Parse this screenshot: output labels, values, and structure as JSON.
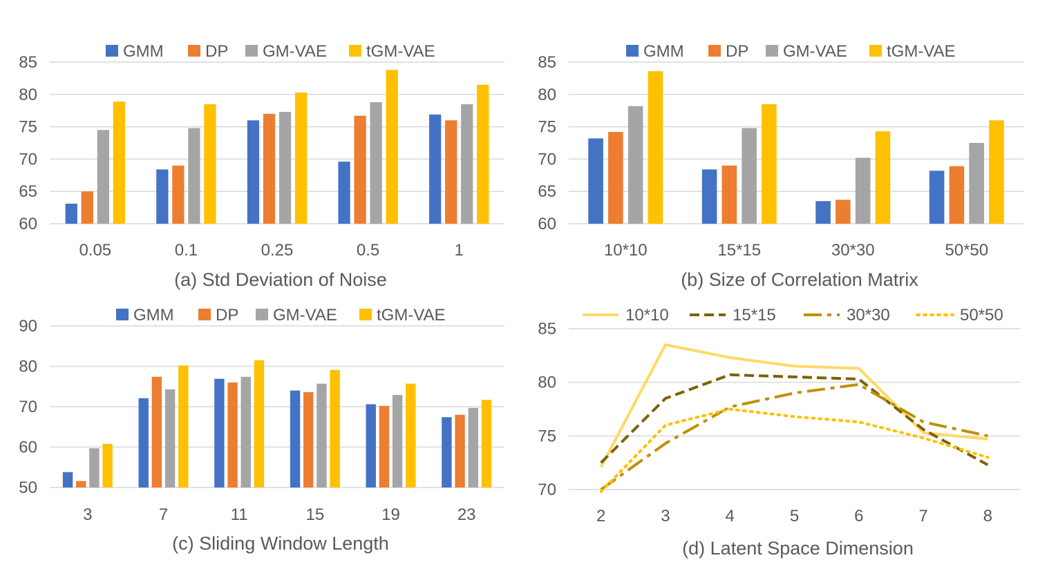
{
  "colors": {
    "GMM": "#4472c4",
    "DP": "#ed7d31",
    "GM-VAE": "#a5a5a5",
    "tGM-VAE": "#ffc000",
    "line_10x10": "#ffd966",
    "line_15x15": "#7f6000",
    "line_30x30": "#bf9000",
    "line_50x50": "#ffc000",
    "grid": "#d9d9d9",
    "text": "#595959"
  },
  "chart_data": [
    {
      "id": "a",
      "type": "bar",
      "title": "(a) Std Deviation of Noise",
      "categories": [
        "0.05",
        "0.1",
        "0.25",
        "0.5",
        "1"
      ],
      "ylim": [
        60,
        85
      ],
      "yticks": [
        60,
        65,
        70,
        75,
        80,
        85
      ],
      "grid": true,
      "legend": "top",
      "series": [
        {
          "name": "GMM",
          "values": [
            63.1,
            68.4,
            76.0,
            69.6,
            76.9
          ]
        },
        {
          "name": "DP",
          "values": [
            65.0,
            69.0,
            77.0,
            76.7,
            76.0
          ]
        },
        {
          "name": "GM-VAE",
          "values": [
            74.5,
            74.8,
            77.3,
            78.8,
            78.5
          ]
        },
        {
          "name": "tGM-VAE",
          "values": [
            78.9,
            78.5,
            80.3,
            83.8,
            81.5
          ]
        }
      ]
    },
    {
      "id": "b",
      "type": "bar",
      "title": "(b) Size of Correlation Matrix",
      "categories": [
        "10*10",
        "15*15",
        "30*30",
        "50*50"
      ],
      "ylim": [
        60,
        85
      ],
      "yticks": [
        60,
        65,
        70,
        75,
        80,
        85
      ],
      "grid": true,
      "legend": "top",
      "series": [
        {
          "name": "GMM",
          "values": [
            73.2,
            68.4,
            63.5,
            68.2
          ]
        },
        {
          "name": "DP",
          "values": [
            74.2,
            69.0,
            63.7,
            68.9
          ]
        },
        {
          "name": "GM-VAE",
          "values": [
            78.2,
            74.8,
            70.2,
            72.5
          ]
        },
        {
          "name": "tGM-VAE",
          "values": [
            83.6,
            78.5,
            74.3,
            76.0
          ]
        }
      ]
    },
    {
      "id": "c",
      "type": "bar",
      "title": "(c) Sliding Window Length",
      "categories": [
        "3",
        "7",
        "11",
        "15",
        "19",
        "23"
      ],
      "ylim": [
        50,
        90
      ],
      "yticks": [
        50,
        60,
        70,
        80,
        90
      ],
      "grid": true,
      "legend": "top",
      "series": [
        {
          "name": "GMM",
          "values": [
            53.8,
            72.1,
            76.9,
            74.0,
            70.6,
            67.4
          ]
        },
        {
          "name": "DP",
          "values": [
            51.6,
            77.4,
            76.0,
            73.6,
            70.2,
            68.0
          ]
        },
        {
          "name": "GM-VAE",
          "values": [
            59.7,
            74.3,
            77.4,
            75.7,
            72.9,
            69.7
          ]
        },
        {
          "name": "tGM-VAE",
          "values": [
            60.8,
            80.2,
            81.5,
            79.1,
            75.7,
            71.7
          ]
        }
      ]
    },
    {
      "id": "d",
      "type": "line",
      "title": "(d) Latent Space Dimension",
      "categories": [
        "2",
        "3",
        "4",
        "5",
        "6",
        "7",
        "8"
      ],
      "ylim": [
        70,
        85
      ],
      "yticks": [
        70,
        75,
        80,
        85
      ],
      "grid": true,
      "legend": "top",
      "series": [
        {
          "name": "10*10",
          "values": [
            72.1,
            83.5,
            82.3,
            81.5,
            81.3,
            75.3,
            74.7
          ]
        },
        {
          "name": "15*15",
          "values": [
            72.5,
            78.5,
            80.7,
            80.5,
            80.3,
            75.6,
            72.3
          ]
        },
        {
          "name": "30*30",
          "values": [
            70.0,
            74.3,
            77.7,
            79.0,
            79.8,
            76.3,
            75.0
          ]
        },
        {
          "name": "50*50",
          "values": [
            69.8,
            76.0,
            77.5,
            76.8,
            76.3,
            74.8,
            73.0
          ]
        }
      ]
    }
  ]
}
